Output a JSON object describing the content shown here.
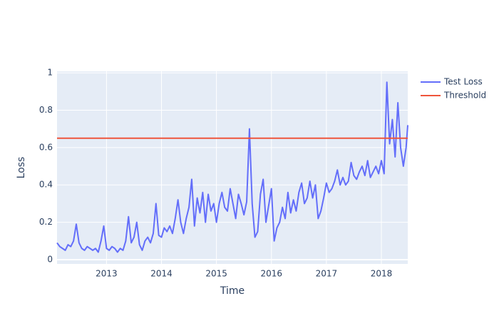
{
  "chart_data": {
    "type": "line",
    "x_label": "Time",
    "y_label": "Loss",
    "xlim": [
      2012.1,
      2018.48
    ],
    "ylim": [
      -0.023,
      1.008
    ],
    "xticks": [
      2013,
      2014,
      2015,
      2016,
      2017,
      2018
    ],
    "yticks": [
      0,
      0.2,
      0.4,
      0.6,
      0.8,
      1
    ],
    "grid": true,
    "legend": "right",
    "series": [
      {
        "name": "Test Loss",
        "color": "#636efa",
        "x": [
          2012.1,
          2012.15,
          2012.2,
          2012.25,
          2012.3,
          2012.35,
          2012.4,
          2012.45,
          2012.5,
          2012.55,
          2012.6,
          2012.65,
          2012.7,
          2012.75,
          2012.8,
          2012.85,
          2012.9,
          2012.95,
          2013,
          2013.05,
          2013.1,
          2013.15,
          2013.2,
          2013.25,
          2013.3,
          2013.35,
          2013.4,
          2013.45,
          2013.5,
          2013.55,
          2013.6,
          2013.65,
          2013.7,
          2013.75,
          2013.8,
          2013.85,
          2013.9,
          2013.95,
          2014,
          2014.05,
          2014.1,
          2014.15,
          2014.2,
          2014.25,
          2014.3,
          2014.35,
          2014.4,
          2014.45,
          2014.5,
          2014.55,
          2014.6,
          2014.65,
          2014.7,
          2014.75,
          2014.8,
          2014.85,
          2014.9,
          2014.95,
          2015,
          2015.05,
          2015.1,
          2015.15,
          2015.2,
          2015.25,
          2015.3,
          2015.35,
          2015.4,
          2015.45,
          2015.5,
          2015.55,
          2015.6,
          2015.65,
          2015.7,
          2015.75,
          2015.8,
          2015.85,
          2015.9,
          2015.95,
          2016,
          2016.05,
          2016.1,
          2016.15,
          2016.2,
          2016.25,
          2016.3,
          2016.35,
          2016.4,
          2016.45,
          2016.5,
          2016.55,
          2016.6,
          2016.65,
          2016.7,
          2016.75,
          2016.8,
          2016.85,
          2016.9,
          2016.95,
          2017,
          2017.05,
          2017.1,
          2017.15,
          2017.2,
          2017.25,
          2017.3,
          2017.35,
          2017.4,
          2017.45,
          2017.5,
          2017.55,
          2017.6,
          2017.65,
          2017.7,
          2017.75,
          2017.8,
          2017.85,
          2017.9,
          2017.95,
          2018,
          2018.05,
          2018.1,
          2018.15,
          2018.2,
          2018.25,
          2018.3,
          2018.35,
          2018.4,
          2018.45,
          2018.48
        ],
        "values": [
          0.09,
          0.07,
          0.06,
          0.05,
          0.08,
          0.07,
          0.1,
          0.19,
          0.09,
          0.06,
          0.05,
          0.07,
          0.06,
          0.05,
          0.06,
          0.04,
          0.1,
          0.18,
          0.06,
          0.05,
          0.07,
          0.06,
          0.04,
          0.06,
          0.05,
          0.1,
          0.23,
          0.09,
          0.12,
          0.2,
          0.08,
          0.05,
          0.1,
          0.12,
          0.09,
          0.14,
          0.3,
          0.13,
          0.12,
          0.17,
          0.15,
          0.18,
          0.14,
          0.22,
          0.32,
          0.2,
          0.14,
          0.22,
          0.28,
          0.43,
          0.18,
          0.33,
          0.25,
          0.36,
          0.2,
          0.35,
          0.26,
          0.3,
          0.2,
          0.3,
          0.36,
          0.28,
          0.26,
          0.38,
          0.3,
          0.22,
          0.35,
          0.3,
          0.24,
          0.31,
          0.7,
          0.3,
          0.12,
          0.15,
          0.35,
          0.43,
          0.2,
          0.29,
          0.38,
          0.1,
          0.17,
          0.2,
          0.28,
          0.22,
          0.36,
          0.25,
          0.32,
          0.26,
          0.36,
          0.41,
          0.3,
          0.33,
          0.42,
          0.33,
          0.4,
          0.22,
          0.26,
          0.33,
          0.41,
          0.36,
          0.38,
          0.42,
          0.48,
          0.4,
          0.44,
          0.4,
          0.42,
          0.52,
          0.45,
          0.43,
          0.47,
          0.5,
          0.45,
          0.53,
          0.44,
          0.47,
          0.5,
          0.46,
          0.53,
          0.46,
          0.95,
          0.62,
          0.75,
          0.55,
          0.84,
          0.6,
          0.5,
          0.6,
          0.72
        ]
      },
      {
        "name": "Threshold",
        "color": "#ef553b",
        "x": [
          2012.1,
          2018.48
        ],
        "values": [
          0.65,
          0.65
        ]
      }
    ]
  }
}
